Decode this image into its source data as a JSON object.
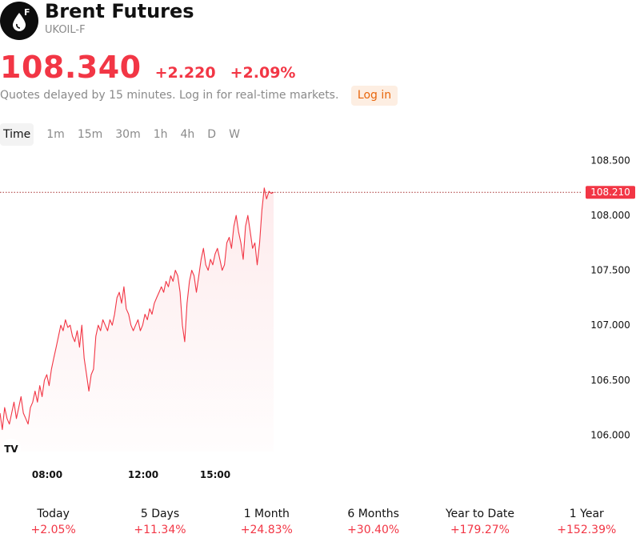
{
  "header": {
    "title": "Brent Futures",
    "symbol": "UKOIL-F",
    "logo_badge": "F",
    "logo_icon": "oil-drop-icon"
  },
  "quote": {
    "price": "108.340",
    "change": "+2.220",
    "change_pct": "+2.09%",
    "delayed_text": "Quotes delayed by 15 minutes. Log in for real-time markets.",
    "login_label": "Log in"
  },
  "tabs": [
    {
      "label": "Time",
      "active": true
    },
    {
      "label": "1m"
    },
    {
      "label": "15m"
    },
    {
      "label": "30m"
    },
    {
      "label": "1h"
    },
    {
      "label": "4h"
    },
    {
      "label": "D"
    },
    {
      "label": "W"
    }
  ],
  "chart_data": {
    "type": "area",
    "x_ticks": [
      "08:00",
      "12:00",
      "15:00"
    ],
    "y_ticks": [
      "108.500",
      "108.000",
      "107.500",
      "107.000",
      "106.500",
      "106.000"
    ],
    "y_tick_values": [
      108.5,
      108.0,
      107.5,
      107.0,
      106.5,
      106.0
    ],
    "ylim": [
      105.85,
      108.62
    ],
    "current_price_label": "108.210",
    "current_price": 108.21,
    "color": "#f23645",
    "series": [
      {
        "values": [
          106.2,
          106.05,
          106.25,
          106.15,
          106.1,
          106.2,
          106.3,
          106.15,
          106.25,
          106.35,
          106.2,
          106.15,
          106.1,
          106.25,
          106.3,
          106.4,
          106.3,
          106.45,
          106.35,
          106.5,
          106.55,
          106.45,
          106.6,
          106.7,
          106.8,
          106.9,
          107.0,
          106.95,
          107.05,
          106.98,
          107.0,
          106.9,
          106.85,
          106.95,
          106.8,
          107.0,
          106.7,
          106.55,
          106.4,
          106.55,
          106.6,
          106.9,
          107.0,
          106.95,
          107.05,
          107.0,
          106.95,
          107.05,
          107.0,
          107.1,
          107.25,
          107.3,
          107.2,
          107.35,
          107.15,
          107.1,
          107.0,
          106.95,
          107.0,
          107.05,
          106.95,
          107.0,
          107.1,
          107.05,
          107.15,
          107.1,
          107.2,
          107.25,
          107.3,
          107.35,
          107.3,
          107.4,
          107.35,
          107.45,
          107.4,
          107.5,
          107.45,
          107.3,
          107.0,
          106.85,
          107.2,
          107.4,
          107.5,
          107.45,
          107.3,
          107.45,
          107.6,
          107.7,
          107.55,
          107.5,
          107.6,
          107.55,
          107.65,
          107.7,
          107.6,
          107.5,
          107.55,
          107.75,
          107.8,
          107.7,
          107.9,
          108.0,
          107.85,
          107.75,
          107.6,
          107.9,
          108.0,
          107.85,
          107.7,
          107.75,
          107.55,
          107.75,
          108.05,
          108.25,
          108.15,
          108.22,
          108.2,
          108.21
        ]
      }
    ]
  },
  "watermark": "tradingview-logo-icon",
  "performance": [
    {
      "label": "Today",
      "value": "+2.05%"
    },
    {
      "label": "5 Days",
      "value": "+11.34%"
    },
    {
      "label": "1 Month",
      "value": "+24.83%"
    },
    {
      "label": "6 Months",
      "value": "+30.40%"
    },
    {
      "label": "Year to Date",
      "value": "+179.27%"
    },
    {
      "label": "1 Year",
      "value": "+152.39%"
    }
  ]
}
